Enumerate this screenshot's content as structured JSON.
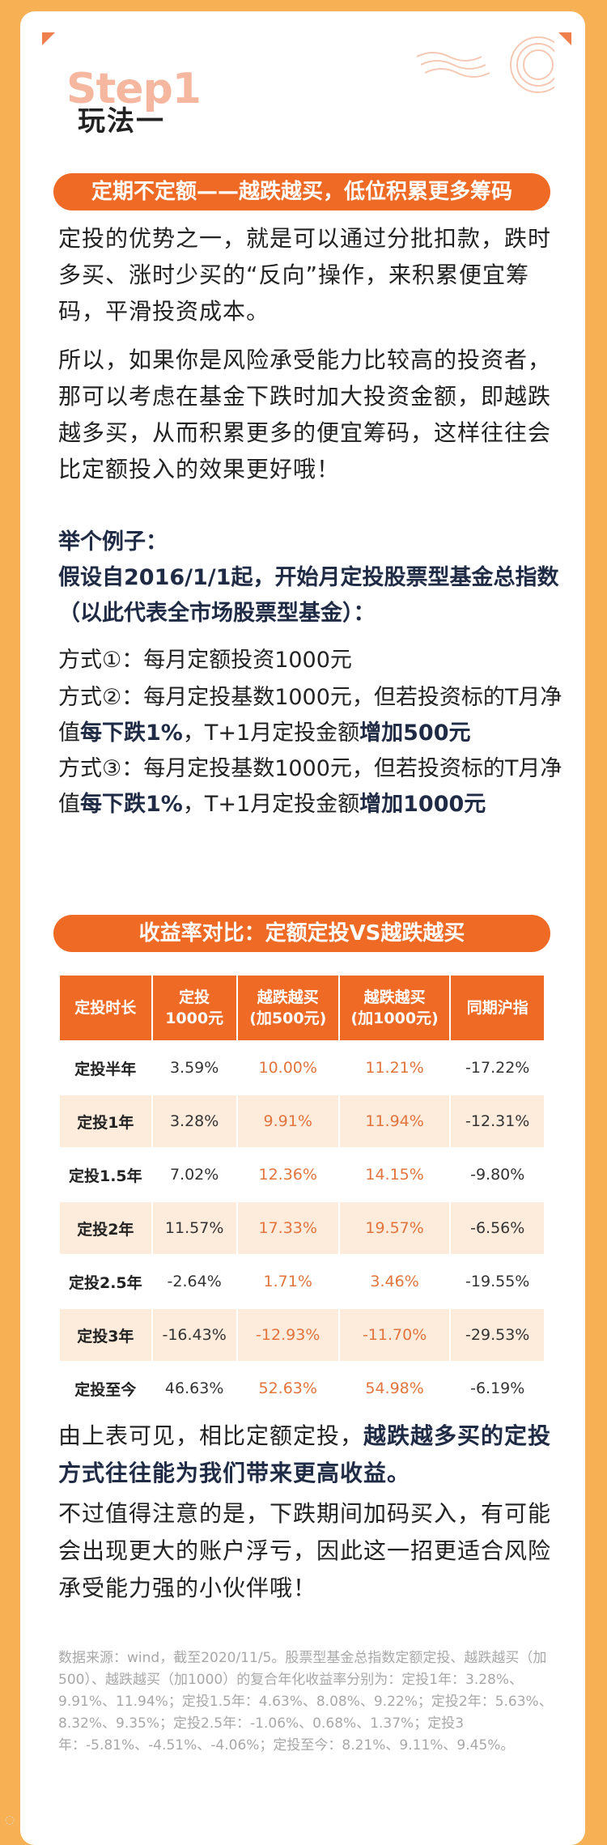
{
  "step": {
    "bg_text": "Step1",
    "title": "玩法一"
  },
  "section1": {
    "pill": "定期不定额——越跌越买，低位积累更多筹码",
    "para_a": "定投的优势之一，就是可以通过分批扣款，跌时多买、涨时少买的“反向”操作，来积累便宜筹码，平滑投资成本。",
    "para_b": "所以，如果你是风险承受能力比较高的投资者，那可以考虑在基金下跌时加大投资金额，即越跌越多买，从而积累更多的便宜筹码，这样往往会比定额投入的效果更好哦！"
  },
  "example": {
    "head": "举个例子：",
    "assume": "假设自2016/1/1起，开始月定投股票型基金总指数（以此代表全市场股票型基金）：",
    "m1": "方式①：每月定额投资1000元",
    "m2_a": "方式②：每月定投基数1000元，但若投资标的T月净值",
    "m2_b1": "每下跌1%",
    "m2_c": "，T+1月定投金额",
    "m2_b2": "增加500元",
    "m3_a": "方式③：每月定投基数1000元，但若投资标的T月净值",
    "m3_b1": "每下跌1%",
    "m3_c": "，T+1月定投金额",
    "m3_b2": "增加1000元"
  },
  "section2": {
    "pill": "收益率对比：定额定投VS越跌越买"
  },
  "table": {
    "headers": [
      "定投时长",
      "定投\n1000元",
      "越跌越买\n(加500元)",
      "越跌越买\n(加1000元)",
      "同期沪指"
    ],
    "rows": [
      [
        "定投半年",
        "3.59%",
        "10.00%",
        "11.21%",
        "-17.22%"
      ],
      [
        "定投1年",
        "3.28%",
        "9.91%",
        "11.94%",
        "-12.31%"
      ],
      [
        "定投1.5年",
        "7.02%",
        "12.36%",
        "14.15%",
        "-9.80%"
      ],
      [
        "定投2年",
        "11.57%",
        "17.33%",
        "19.57%",
        "-6.56%"
      ],
      [
        "定投2.5年",
        "-2.64%",
        "1.71%",
        "3.46%",
        "-19.55%"
      ],
      [
        "定投3年",
        "-16.43%",
        "-12.93%",
        "-11.70%",
        "-29.53%"
      ],
      [
        "定投至今",
        "46.63%",
        "52.63%",
        "54.98%",
        "-6.19%"
      ]
    ]
  },
  "summary": {
    "a_plain": "由上表可见，相比定额定投，",
    "a_bold": "越跌越多买的定投方式往往能为我们带来更高收益。",
    "b": "不过值得注意的是，下跌期间加码买入，有可能会出现更大的账户浮亏，因此这一招更适合风险承受能力强的小伙伴哦！"
  },
  "note": "数据来源：wind，截至2020/11/5。股票型基金总指数定额定投、越跌越买（加500）、越跌越买（加1000）的复合年化收益率分别为：定投1年：3.28%、9.91%、11.94%；定投1.5年：4.63%、8.08%、9.22%；定投2年：5.63%、8.32%、9.35%；定投2.5年：-1.06%、0.68%、1.37%；定投3年：-5.81%、-4.51%、-4.06%；定投至今：8.21%、9.11%、9.45%。",
  "colors": {
    "accent": "#ee6a25",
    "bg": "#f7b154",
    "row_alt": "#fdebdc",
    "highlight": "#e2743d"
  }
}
